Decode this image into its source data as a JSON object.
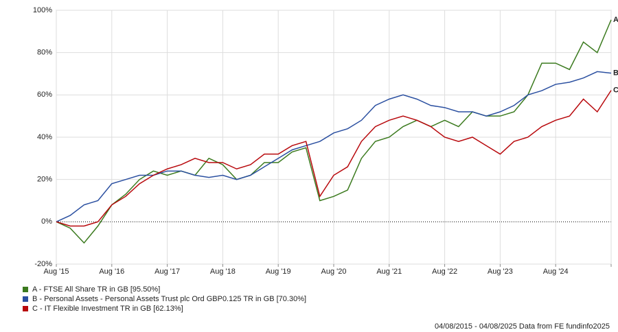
{
  "chart_data": {
    "type": "line",
    "categories": [
      "Aug '15",
      null,
      null,
      null,
      "Aug '16",
      null,
      null,
      null,
      "Aug '17",
      null,
      null,
      null,
      "Aug '18",
      null,
      null,
      null,
      "Aug '19",
      null,
      null,
      null,
      "Aug '20",
      null,
      null,
      null,
      "Aug '21",
      null,
      null,
      null,
      "Aug '22",
      null,
      null,
      null,
      "Aug '23",
      null,
      null,
      null,
      "Aug '24",
      null,
      null,
      null,
      null
    ],
    "series": [
      {
        "tag": "A",
        "name": "A - FTSE All Share TR in GB [95.50%]",
        "color": "#3b7a1e",
        "values": [
          0,
          -3,
          -10,
          -2,
          8,
          13,
          20,
          24,
          22,
          24,
          22,
          30,
          27,
          20,
          22,
          28,
          28,
          33,
          35,
          10,
          12,
          15,
          30,
          38,
          40,
          45,
          48,
          45,
          48,
          45,
          52,
          50,
          50,
          52,
          60,
          75,
          75,
          72,
          85,
          80,
          95.5
        ]
      },
      {
        "tag": "B",
        "name": "B - Personal Assets - Personal Assets Trust plc Ord GBP0.125 TR in GB [70.30%]",
        "color": "#2a4fa0",
        "values": [
          0,
          3,
          8,
          10,
          18,
          20,
          22,
          22,
          24,
          24,
          22,
          21,
          22,
          20,
          22,
          26,
          30,
          34,
          36,
          38,
          42,
          44,
          48,
          55,
          58,
          60,
          58,
          55,
          54,
          52,
          52,
          50,
          52,
          55,
          60,
          62,
          65,
          66,
          68,
          71,
          70.3
        ]
      },
      {
        "tag": "C",
        "name": "C - IT Flexible Investment TR in GB [62.13%]",
        "color": "#b8080c",
        "values": [
          0,
          -2,
          -2,
          0,
          8,
          12,
          18,
          22,
          25,
          27,
          30,
          28,
          28,
          25,
          27,
          32,
          32,
          36,
          38,
          12,
          22,
          26,
          38,
          45,
          48,
          50,
          48,
          45,
          40,
          38,
          40,
          36,
          32,
          38,
          40,
          45,
          48,
          50,
          58,
          52,
          62.13
        ]
      }
    ],
    "ylim": [
      -20,
      100
    ],
    "yticks": [
      {
        "value": -20,
        "label": "-20%"
      },
      {
        "value": 0,
        "label": "0%"
      },
      {
        "value": 20,
        "label": "20%"
      },
      {
        "value": 40,
        "label": "40%"
      },
      {
        "value": 60,
        "label": "60%"
      },
      {
        "value": 80,
        "label": "80%"
      },
      {
        "value": 100,
        "label": "100%"
      }
    ],
    "grid": true,
    "footer": "04/08/2015 - 04/08/2025 Data from FE fundinfo2025"
  }
}
